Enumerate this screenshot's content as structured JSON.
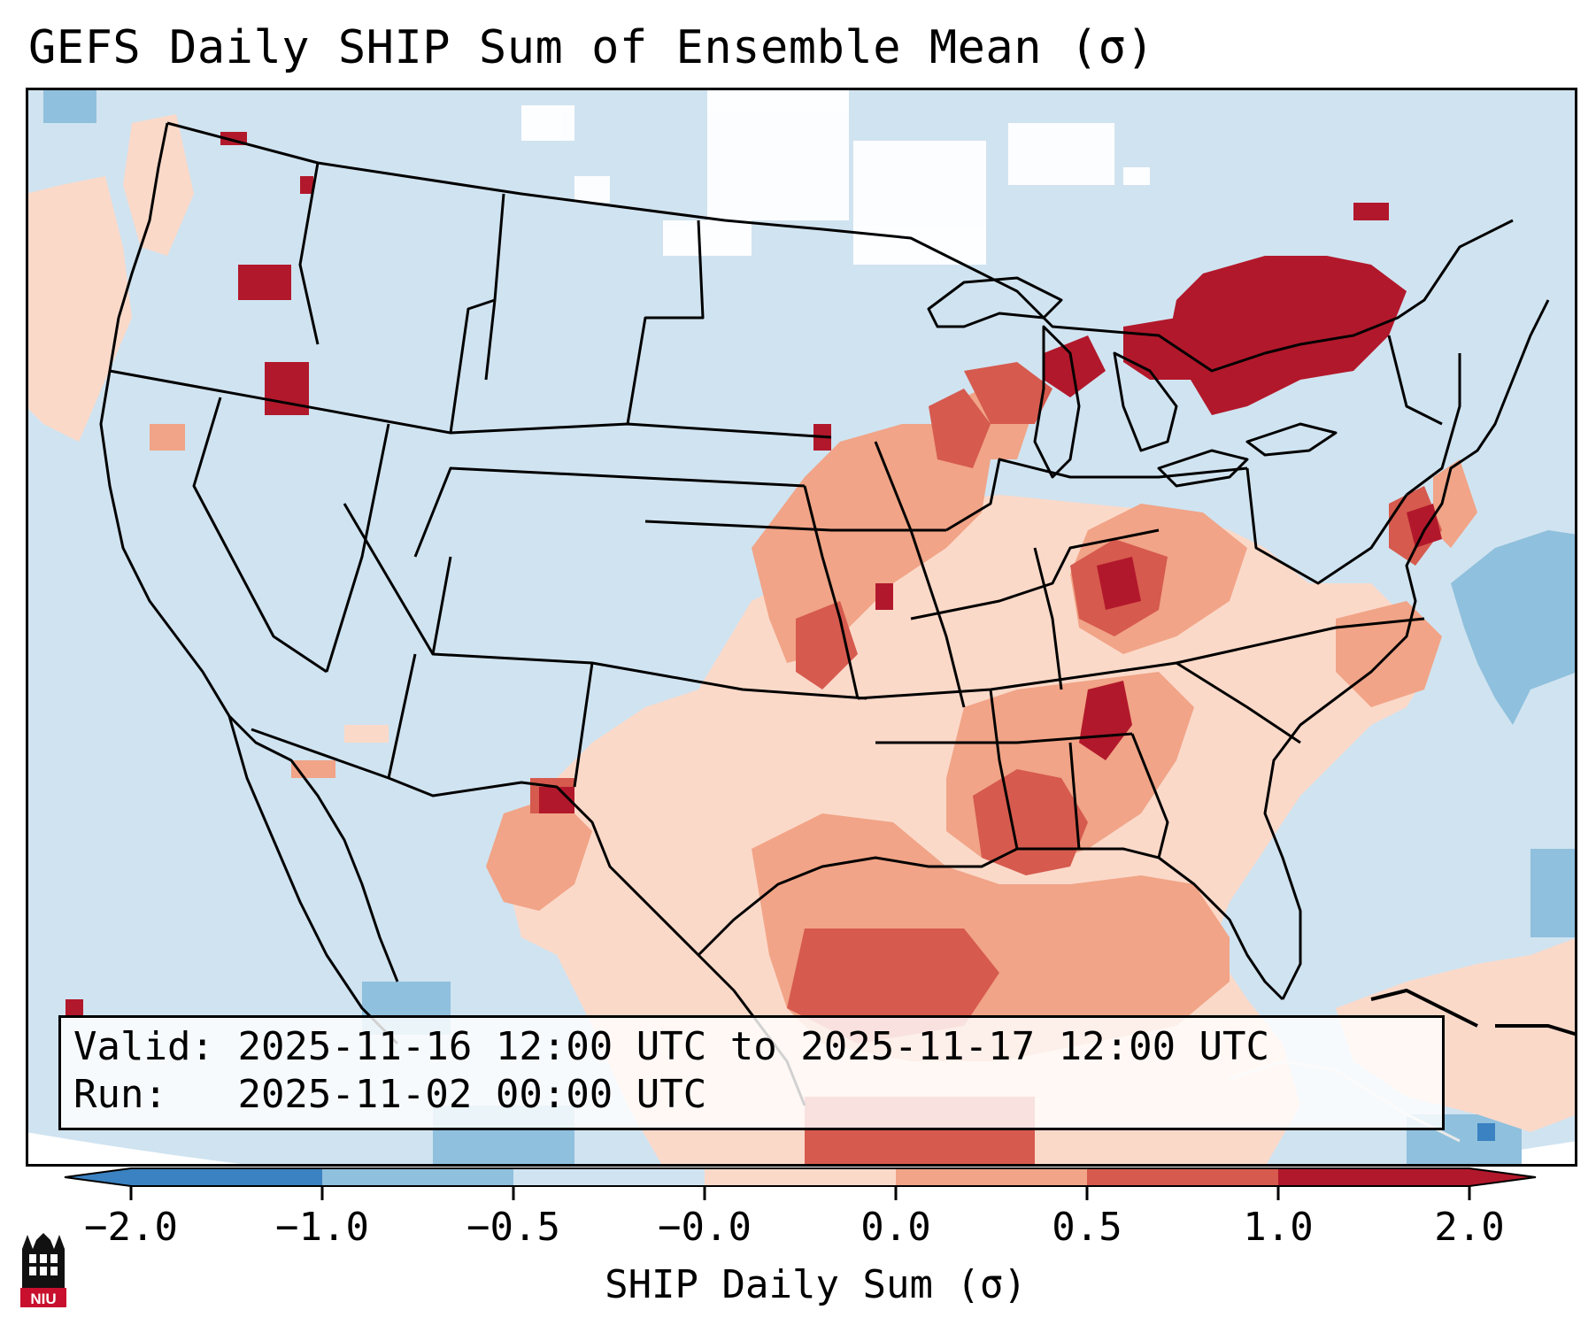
{
  "title": "GEFS Daily SHIP Sum of Ensemble Mean (σ)",
  "info": {
    "valid_label": "Valid:",
    "valid_value": "2025-11-16 12:00 UTC to 2025-11-17 12:00 UTC",
    "run_label": "Run:",
    "run_value": "2025-11-02 00:00 UTC"
  },
  "colorbar": {
    "label": "SHIP Daily Sum (σ)",
    "ticks": [
      "−2.0",
      "−1.0",
      "−0.5",
      "−0.0",
      "0.0",
      "0.5",
      "1.0",
      "2.0"
    ],
    "colors": [
      "#3a82c2",
      "#8fc0dd",
      "#d0e3f0",
      "#ffffff",
      "#fbd9c9",
      "#f1a487",
      "#d65a4e",
      "#b2182b"
    ]
  },
  "logo": {
    "text": "NIU",
    "color": "#c8102e"
  },
  "map": {
    "ocean_color": "#d0e3f0",
    "background_color": "#ffffff",
    "region": "Continental United States"
  }
}
